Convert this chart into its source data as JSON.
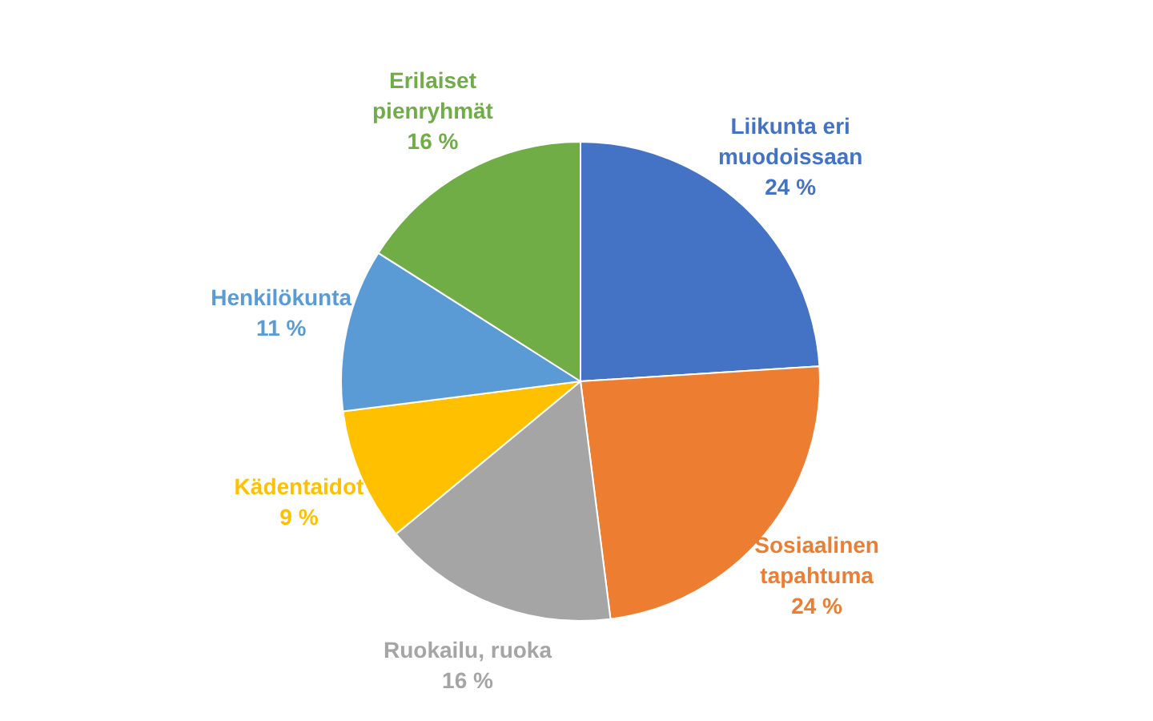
{
  "chart_data": {
    "type": "pie",
    "categories": [
      "Liikunta eri muodoissaan",
      "Sosiaalinen tapahtuma",
      "Ruokailu, ruoka",
      "Kädentaidot",
      "Henkilökunta",
      "Erilaiset pienryhmät"
    ],
    "values": [
      24,
      24,
      16,
      9,
      11,
      16
    ],
    "colors": [
      "#4472c4",
      "#ed7d31",
      "#a5a5a5",
      "#ffc000",
      "#5b9bd5",
      "#70ad47"
    ],
    "value_labels": [
      "24 %",
      "24 %",
      "16 %",
      "9 %",
      "11 %",
      "16 %"
    ],
    "legend": false
  }
}
